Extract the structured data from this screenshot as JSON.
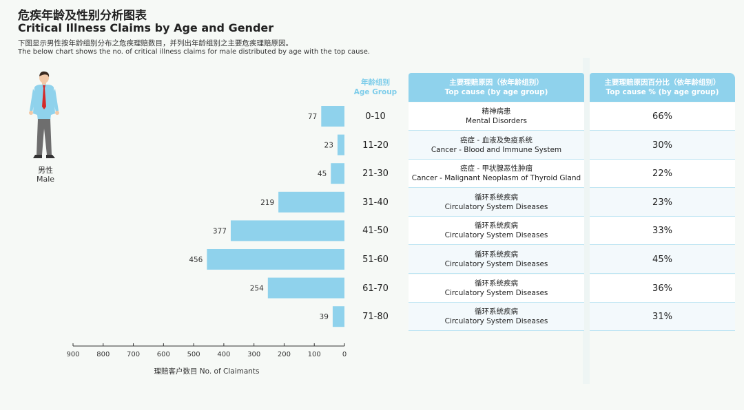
{
  "header": {
    "title_zh": "危疾年龄及性别分析图表",
    "title_en": "Critical Illness Claims by Age and Gender",
    "subtitle_zh": "下图显示男性按年龄组别分布之危疾理赔数目，并列出年龄组别之主要危疾理赔原因。",
    "subtitle_en": "The below chart shows the no. of critical illness claims for male distributed by age with the top cause."
  },
  "gender": {
    "label_zh": "男性",
    "label_en": "Male",
    "icon": "male-person-icon"
  },
  "table": {
    "age_header_zh": "年龄组别",
    "age_header_en": "Age Group",
    "cause_header_zh": "主要理赔原因（依年龄组别）",
    "cause_header_en": "Top cause (by age group)",
    "pct_header_zh": "主要理赔原因百分比（依年龄组别）",
    "pct_header_en": "Top cause % (by age group)",
    "rows": [
      {
        "age": "0-10",
        "cause_zh": "精神病患",
        "cause_en": "Mental Disorders",
        "pct": "66%"
      },
      {
        "age": "11-20",
        "cause_zh": "癌症 - 血液及免疫系统",
        "cause_en": "Cancer - Blood and Immune System",
        "pct": "30%"
      },
      {
        "age": "21-30",
        "cause_zh": "癌症 - 甲状腺恶性肿瘤",
        "cause_en": "Cancer - Malignant Neoplasm of Thyroid Gland",
        "pct": "22%"
      },
      {
        "age": "31-40",
        "cause_zh": "循环系统疾病",
        "cause_en": "Circulatory System Diseases",
        "pct": "23%"
      },
      {
        "age": "41-50",
        "cause_zh": "循环系统疾病",
        "cause_en": "Circulatory System Diseases",
        "pct": "33%"
      },
      {
        "age": "51-60",
        "cause_zh": "循环系统疾病",
        "cause_en": "Circulatory System Diseases",
        "pct": "45%"
      },
      {
        "age": "61-70",
        "cause_zh": "循环系统疾病",
        "cause_en": "Circulatory System Diseases",
        "pct": "36%"
      },
      {
        "age": "71-80",
        "cause_zh": "循环系统疾病",
        "cause_en": "Circulatory System Diseases",
        "pct": "31%"
      }
    ]
  },
  "colors": {
    "bar": "#8fd2ec",
    "header_bg": "#8fd2ec",
    "age_header": "#7ecdea"
  },
  "chart_data": {
    "type": "bar",
    "orientation": "horizontal-reversed",
    "categories": [
      "0-10",
      "11-20",
      "21-30",
      "31-40",
      "41-50",
      "51-60",
      "61-70",
      "71-80"
    ],
    "values": [
      77,
      23,
      45,
      219,
      377,
      456,
      254,
      39
    ],
    "xlabel": "理赔客户数目 No. of Claimants",
    "xlim": [
      0,
      900
    ],
    "xticks": [
      900,
      800,
      700,
      600,
      500,
      400,
      300,
      200,
      100,
      0
    ],
    "grid": false
  }
}
